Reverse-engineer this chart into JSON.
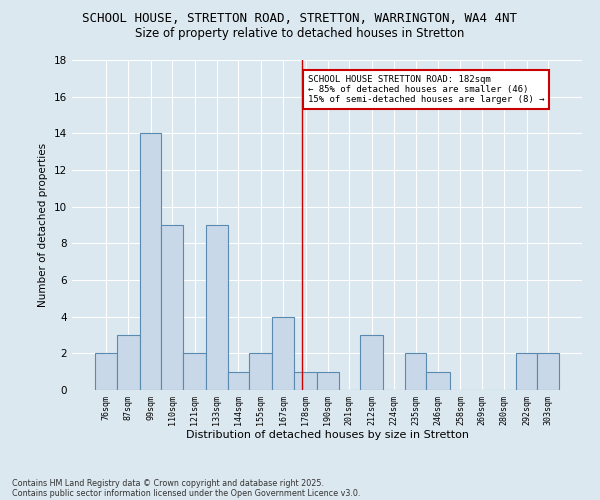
{
  "title1": "SCHOOL HOUSE, STRETTON ROAD, STRETTON, WARRINGTON, WA4 4NT",
  "title2": "Size of property relative to detached houses in Stretton",
  "xlabel": "Distribution of detached houses by size in Stretton",
  "ylabel": "Number of detached properties",
  "bins": [
    76,
    87,
    99,
    110,
    121,
    133,
    144,
    155,
    167,
    178,
    190,
    201,
    212,
    224,
    235,
    246,
    258,
    269,
    280,
    292,
    303
  ],
  "heights": [
    2,
    3,
    14,
    9,
    2,
    9,
    1,
    2,
    4,
    1,
    1,
    0,
    3,
    0,
    2,
    1,
    0,
    0,
    0,
    2,
    2
  ],
  "bar_color": "#c8d8e8",
  "bar_edge_color": "#5a8ab0",
  "vline_x": 182,
  "vline_color": "#cc0000",
  "ylim": [
    0,
    18
  ],
  "yticks": [
    0,
    2,
    4,
    6,
    8,
    10,
    12,
    14,
    16,
    18
  ],
  "annotation_title": "SCHOOL HOUSE STRETTON ROAD: 182sqm",
  "annotation_line2": "← 85% of detached houses are smaller (46)",
  "annotation_line3": "15% of semi-detached houses are larger (8) →",
  "annotation_box_color": "#ffffff",
  "annotation_border_color": "#cc0000",
  "footer1": "Contains HM Land Registry data © Crown copyright and database right 2025.",
  "footer2": "Contains public sector information licensed under the Open Government Licence v3.0.",
  "background_color": "#dce8f0",
  "grid_color": "#ffffff",
  "title_fontsize": 9,
  "subtitle_fontsize": 8.5
}
